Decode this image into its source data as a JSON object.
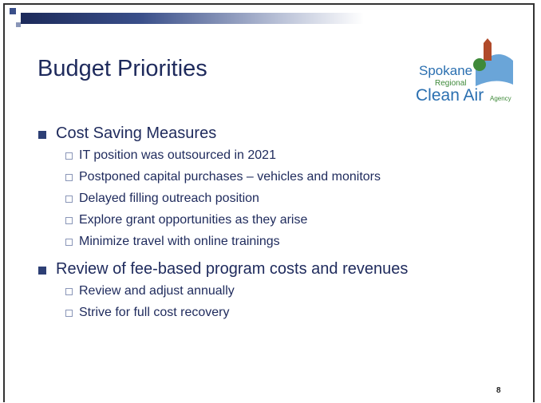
{
  "title": "Budget Priorities",
  "logo": {
    "line1": "Spokane",
    "line2": "Regional",
    "line3": "Clean Air",
    "line4": "Agency"
  },
  "bullets": [
    {
      "text": "Cost Saving Measures",
      "items": [
        "IT position was outsourced in 2021",
        "Postponed capital purchases – vehicles and monitors",
        "Delayed filling outreach position",
        "Explore grant opportunities as they arise",
        "Minimize travel with online trainings"
      ]
    },
    {
      "text": "Review of fee-based program costs and revenues",
      "items": [
        "Review and adjust annually",
        "Strive for full cost recovery"
      ]
    }
  ],
  "page_number": "8"
}
